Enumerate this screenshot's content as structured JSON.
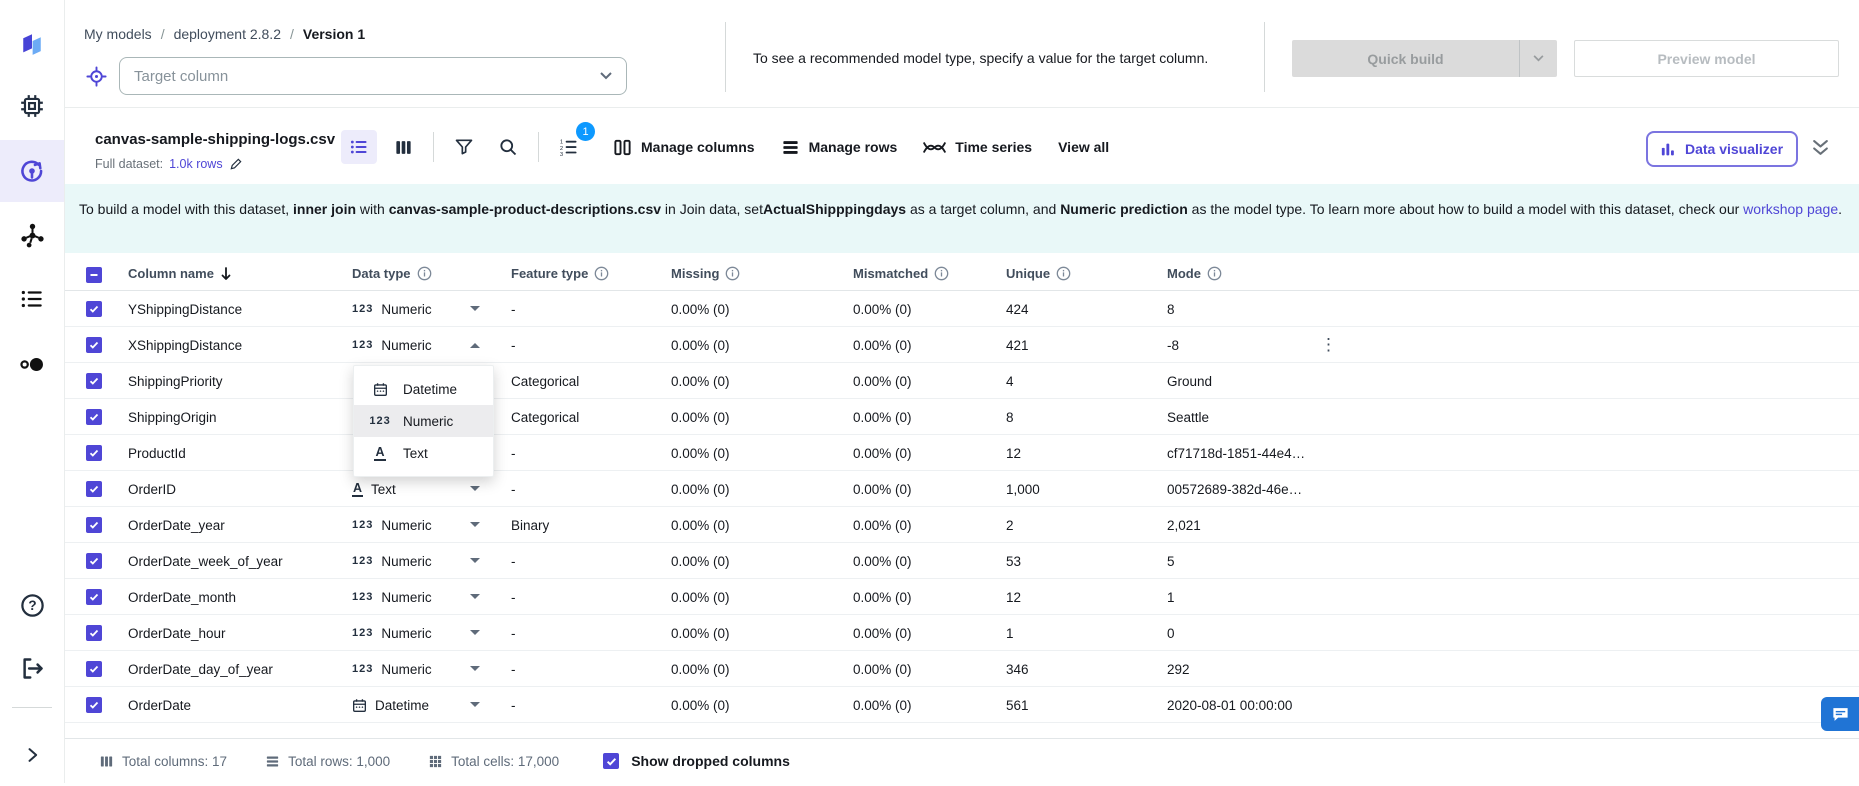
{
  "colors": {
    "accent": "#4f46d6",
    "badge_blue": "#0d99ff",
    "banner_bg": "#e9f8f8",
    "chat_blue": "#2074d5"
  },
  "sidebar": {
    "items": [
      "canvas-logo",
      "compute-chip",
      "my-models",
      "model-network",
      "list-menu",
      "circles",
      "help",
      "logout",
      "expand-chevron"
    ]
  },
  "breadcrumb": {
    "items": [
      "My models",
      "deployment 2.8.2",
      "Version 1"
    ],
    "separator": "/"
  },
  "target": {
    "placeholder": "Target column"
  },
  "hint": "To see a recommended model type, specify a value for the target column.",
  "actions": {
    "quick_build": "Quick build",
    "preview_model": "Preview model"
  },
  "dataset": {
    "name": "canvas-sample-shipping-logs.csv",
    "full_dataset_label": "Full dataset:",
    "rows_link": "1.0k rows",
    "sort_badge": "1",
    "manage_columns": "Manage columns",
    "manage_rows": "Manage rows",
    "time_series": "Time series",
    "view_all": "View all",
    "data_visualizer": "Data visualizer"
  },
  "banner": {
    "segments": [
      {
        "text": "To build a model with this dataset, "
      },
      {
        "text": "inner join",
        "bold": true
      },
      {
        "text": " with "
      },
      {
        "text": "canvas-sample-product-descriptions.csv",
        "bold": true
      },
      {
        "text": " in Join data, set"
      },
      {
        "text": "ActualShipppingdays",
        "bold": true
      },
      {
        "text": " as a target column, and "
      },
      {
        "text": "Numeric prediction",
        "bold": true
      },
      {
        "text": " as the model type. To learn more about how to build a model with this dataset, check our "
      },
      {
        "text": "workshop page",
        "link": true
      },
      {
        "text": "."
      }
    ]
  },
  "table": {
    "headers": {
      "column_name": "Column name",
      "data_type": "Data type",
      "feature_type": "Feature type",
      "missing": "Missing",
      "mismatched": "Mismatched",
      "unique": "Unique",
      "mode": "Mode"
    },
    "rows": [
      {
        "name": "YShippingDistance",
        "dtype": "Numeric",
        "dicon": "123",
        "feature": "-",
        "missing": "0.00% (0)",
        "mismatched": "0.00% (0)",
        "unique": "424",
        "mode": "8",
        "chevron": "down"
      },
      {
        "name": "XShippingDistance",
        "dtype": "Numeric",
        "dicon": "123",
        "feature": "-",
        "missing": "0.00% (0)",
        "mismatched": "0.00% (0)",
        "unique": "421",
        "mode": "-8",
        "chevron": "up",
        "kebab": true
      },
      {
        "name": "ShippingPriority",
        "dtype": "",
        "dicon": "",
        "feature": "Categorical",
        "missing": "0.00% (0)",
        "mismatched": "0.00% (0)",
        "unique": "4",
        "mode": "Ground"
      },
      {
        "name": "ShippingOrigin",
        "dtype": "",
        "dicon": "",
        "feature": "Categorical",
        "missing": "0.00% (0)",
        "mismatched": "0.00% (0)",
        "unique": "8",
        "mode": "Seattle"
      },
      {
        "name": "ProductId",
        "dtype": "",
        "dicon": "",
        "feature": "-",
        "missing": "0.00% (0)",
        "mismatched": "0.00% (0)",
        "unique": "12",
        "mode": "cf71718d-1851-44e4…"
      },
      {
        "name": "OrderID",
        "dtype": "Text",
        "dicon": "A",
        "feature": "-",
        "missing": "0.00% (0)",
        "mismatched": "0.00% (0)",
        "unique": "1,000",
        "mode": "00572689-382d-46e…",
        "chevron": "down"
      },
      {
        "name": "OrderDate_year",
        "dtype": "Numeric",
        "dicon": "123",
        "feature": "Binary",
        "missing": "0.00% (0)",
        "mismatched": "0.00% (0)",
        "unique": "2",
        "mode": "2,021",
        "chevron": "down"
      },
      {
        "name": "OrderDate_week_of_year",
        "dtype": "Numeric",
        "dicon": "123",
        "feature": "-",
        "missing": "0.00% (0)",
        "mismatched": "0.00% (0)",
        "unique": "53",
        "mode": "5",
        "chevron": "down"
      },
      {
        "name": "OrderDate_month",
        "dtype": "Numeric",
        "dicon": "123",
        "feature": "-",
        "missing": "0.00% (0)",
        "mismatched": "0.00% (0)",
        "unique": "12",
        "mode": "1",
        "chevron": "down"
      },
      {
        "name": "OrderDate_hour",
        "dtype": "Numeric",
        "dicon": "123",
        "feature": "-",
        "missing": "0.00% (0)",
        "mismatched": "0.00% (0)",
        "unique": "1",
        "mode": "0",
        "chevron": "down"
      },
      {
        "name": "OrderDate_day_of_year",
        "dtype": "Numeric",
        "dicon": "123",
        "feature": "-",
        "missing": "0.00% (0)",
        "mismatched": "0.00% (0)",
        "unique": "346",
        "mode": "292",
        "chevron": "down"
      },
      {
        "name": "OrderDate",
        "dtype": "Datetime",
        "dicon": "calendar",
        "feature": "-",
        "missing": "0.00% (0)",
        "mismatched": "0.00% (0)",
        "unique": "561",
        "mode": "2020-08-01 00:00:00",
        "chevron": "down"
      }
    ]
  },
  "type_menu": {
    "items": [
      {
        "label": "Datetime",
        "icon": "calendar"
      },
      {
        "label": "Numeric",
        "icon": "123",
        "selected": true
      },
      {
        "label": "Text",
        "icon": "A"
      }
    ]
  },
  "footer": {
    "total_columns": "Total columns: 17",
    "total_rows": "Total rows: 1,000",
    "total_cells": "Total cells: 17,000",
    "show_dropped": "Show dropped columns"
  }
}
